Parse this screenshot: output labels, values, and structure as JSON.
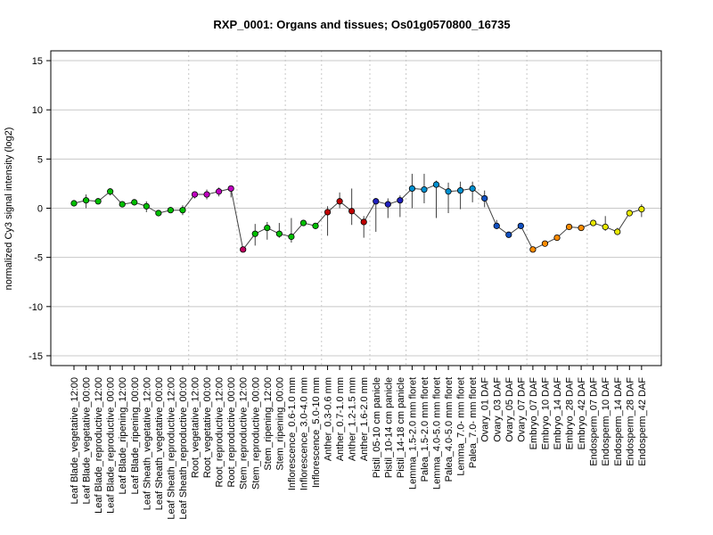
{
  "chart_data": {
    "type": "line",
    "title": "RXP_0001: Organs and tissues; Os01g0570800_16735",
    "xlabel": "",
    "ylabel": "normalized Cy3 signal intensity (log2)",
    "ylim": [
      -16,
      16
    ],
    "yticks": [
      15,
      10,
      5,
      0,
      -5,
      -10,
      -15
    ],
    "grid": true,
    "categories": [
      "Leaf Blade_vegetative_12:00",
      "Leaf Blade_vegetative_00:00",
      "Leaf Blade_reproductive_12:00",
      "Leaf Blade_reproductive_00:00",
      "Leaf Blade_ripening_12:00",
      "Leaf Blade_ripening_00:00",
      "Leaf Sheath_vegetative_12:00",
      "Leaf Sheath_vegetative_00:00",
      "Leaf Sheath_reproductive_12:00",
      "Leaf Sheath_reproductive_00:00",
      "Root_vegetative_12:00",
      "Root_vegetative_00:00",
      "Root_reproductive_12:00",
      "Root_reproductive_00:00",
      "Stem_reproductive_12:00",
      "Stem_reproductive_00:00",
      "Stem_ripening_12:00",
      "Stem_ripening_00:00",
      "Inflorescence_0.6-1.0 mm",
      "Inflorescence_3.0-4.0 mm",
      "Inflorescence_5.0-10 mm",
      "Anther_0.3-0.6 mm",
      "Anther_0.7-1.0 mm",
      "Anther_1.2-1.5 mm",
      "Anther_1.6-2.0 mm",
      "Pistil_05-10 cm panicle",
      "Pistil_10-14 cm panicle",
      "Pistil_14-18 cm panicle",
      "Lemma_1.5-2.0 mm floret",
      "Palea_1.5-2.0 mm floret",
      "Lemma_4.0-5.0 mm floret",
      "Palea_4.0-5.0 mm floret",
      "Lemma_7.0- mm floret",
      "Palea_7.0- mm floret",
      "Ovary_01 DAF",
      "Ovary_03 DAF",
      "Ovary_05 DAF",
      "Ovary_07 DAF",
      "Embryo_07 DAF",
      "Embryo_10 DAF",
      "Embryo_14 DAF",
      "Embryo_28 DAF",
      "Embryo_42 DAF",
      "Endosperm_07 DAF",
      "Endosperm_10 DAF",
      "Endosperm_14 DAF",
      "Endosperm_28 DAF",
      "Endosperm_42 DAF"
    ],
    "values": [
      0.5,
      0.8,
      0.7,
      1.7,
      0.4,
      0.6,
      0.2,
      -0.5,
      -0.2,
      -0.2,
      1.4,
      1.4,
      1.7,
      2.0,
      -4.2,
      -2.6,
      -2.0,
      -2.6,
      -2.9,
      -1.5,
      -1.8,
      -0.4,
      0.7,
      -0.3,
      -1.4,
      0.7,
      0.4,
      0.8,
      2.0,
      1.9,
      2.4,
      1.7,
      1.8,
      2.0,
      1.0,
      -1.8,
      -2.7,
      -1.8,
      -4.2,
      -3.6,
      -3.0,
      -1.9,
      -2.0,
      -1.5,
      -1.9,
      -2.4,
      -0.5,
      -0.1
    ],
    "error_low": [
      0.2,
      0.0,
      0.5,
      1.3,
      0.3,
      0.3,
      -0.4,
      -0.7,
      -0.5,
      -0.7,
      1.0,
      0.9,
      1.2,
      1.1,
      -4.3,
      -3.8,
      -3.2,
      -3.0,
      -3.5,
      -1.7,
      -2.0,
      -2.8,
      0.0,
      -1.7,
      -3.0,
      -2.4,
      -1.0,
      -0.9,
      0.0,
      0.5,
      -1.0,
      -0.5,
      -0.1,
      0.6,
      0.1,
      -2.0,
      -2.9,
      -2.0,
      -4.4,
      -3.7,
      -3.2,
      -2.0,
      -2.2,
      -1.7,
      -2.3,
      -2.6,
      -0.8,
      -0.9
    ],
    "error_high": [
      0.8,
      1.4,
      0.9,
      1.8,
      0.5,
      0.8,
      0.7,
      -0.3,
      0.1,
      0.3,
      1.7,
      1.9,
      2.1,
      2.2,
      -4.0,
      -1.6,
      -1.4,
      -1.5,
      -1.0,
      -1.2,
      -1.5,
      0.2,
      1.6,
      2.0,
      -0.8,
      1.0,
      1.0,
      1.3,
      3.5,
      3.5,
      2.8,
      2.6,
      2.7,
      2.7,
      1.8,
      -1.2,
      -2.5,
      -1.6,
      -3.9,
      -3.5,
      -2.8,
      -1.8,
      -1.8,
      -1.3,
      -0.8,
      -2.0,
      -0.2,
      0.4
    ],
    "colors": [
      "#00C000",
      "#00C000",
      "#00C000",
      "#00C000",
      "#00C000",
      "#00C000",
      "#00C000",
      "#00C000",
      "#00C000",
      "#00C000",
      "#C000C0",
      "#C000C0",
      "#C000C0",
      "#C000C0",
      "#C00060",
      "#00C000",
      "#00C000",
      "#00C000",
      "#00C000",
      "#00C000",
      "#00C000",
      "#C00000",
      "#C00000",
      "#C00000",
      "#C00000",
      "#2020C0",
      "#2020C0",
      "#2020C0",
      "#0090D0",
      "#0090D0",
      "#0090D0",
      "#0090D0",
      "#0090D0",
      "#0090D0",
      "#1050C0",
      "#1050C0",
      "#1050C0",
      "#1050C0",
      "#FF8C00",
      "#FF8C00",
      "#FF8C00",
      "#FF8C00",
      "#FF8C00",
      "#E8E800",
      "#E8E800",
      "#E8E800",
      "#E8E800",
      "#E8E800"
    ]
  }
}
